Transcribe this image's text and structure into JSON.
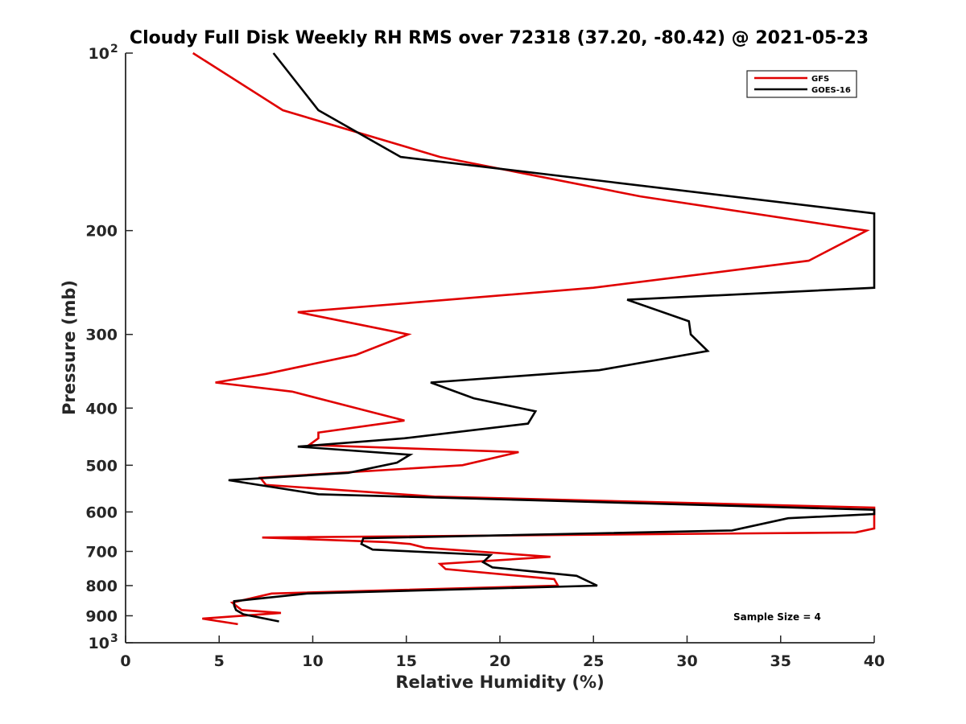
{
  "chart_data": {
    "type": "line",
    "title": "Cloudy Full Disk Weekly RH RMS over 72318 (37.20, -80.42) @ 2021-05-23",
    "xlabel": "Relative Humidity (%)",
    "ylabel": "Pressure (mb)",
    "xlim": [
      0,
      40
    ],
    "ylim": [
      1000,
      100
    ],
    "yscale": "log",
    "x_ticks": [
      "0",
      "5",
      "10",
      "15",
      "20",
      "25",
      "30",
      "35",
      "40"
    ],
    "y_ticks": [
      {
        "value": 100,
        "base": "10",
        "exp": "2"
      },
      {
        "value": 200,
        "label": "200"
      },
      {
        "value": 300,
        "label": "300"
      },
      {
        "value": 400,
        "label": "400"
      },
      {
        "value": 500,
        "label": "500"
      },
      {
        "value": 600,
        "label": "600"
      },
      {
        "value": 700,
        "label": "700"
      },
      {
        "value": 800,
        "label": "800"
      },
      {
        "value": 900,
        "label": "900"
      },
      {
        "value": 1000,
        "base": "10",
        "exp": "3"
      }
    ],
    "legend_position": "top-right",
    "annotation": "Sample Size = 4",
    "grid": false,
    "series": [
      {
        "name": "GFS",
        "color": "#e00000",
        "points": [
          [
            3.6,
            100
          ],
          [
            8.4,
            125
          ],
          [
            16.8,
            150
          ],
          [
            27.5,
            175
          ],
          [
            39.6,
            200
          ],
          [
            36.5,
            225
          ],
          [
            25.0,
            250
          ],
          [
            9.2,
            275
          ],
          [
            15.1,
            300
          ],
          [
            12.3,
            325
          ],
          [
            7.5,
            350
          ],
          [
            4.8,
            362
          ],
          [
            8.9,
            375
          ],
          [
            14.9,
            420
          ],
          [
            10.3,
            440
          ],
          [
            10.3,
            450
          ],
          [
            9.8,
            462
          ],
          [
            21.0,
            475
          ],
          [
            18.0,
            500
          ],
          [
            7.2,
            525
          ],
          [
            7.5,
            540
          ],
          [
            16.5,
            565
          ],
          [
            40,
            590
          ],
          [
            40,
            640
          ],
          [
            39.0,
            650
          ],
          [
            7.3,
            663
          ],
          [
            14.0,
            675
          ],
          [
            15.2,
            680
          ],
          [
            16.0,
            690
          ],
          [
            22.7,
            715
          ],
          [
            16.8,
            735
          ],
          [
            17.1,
            750
          ],
          [
            22.9,
            780
          ],
          [
            23.1,
            800
          ],
          [
            7.8,
            825
          ],
          [
            5.7,
            855
          ],
          [
            6.2,
            880
          ],
          [
            8.3,
            890
          ],
          [
            4.1,
            910
          ],
          [
            6.0,
            930
          ]
        ]
      },
      {
        "name": "GOES-16",
        "color": "#000000",
        "points": [
          [
            7.9,
            100
          ],
          [
            10.3,
            125
          ],
          [
            14.7,
            150
          ],
          [
            40,
            187
          ],
          [
            40,
            250
          ],
          [
            26.8,
            262
          ],
          [
            30.1,
            285
          ],
          [
            30.2,
            300
          ],
          [
            31.1,
            320
          ],
          [
            25.3,
            345
          ],
          [
            16.3,
            362
          ],
          [
            18.6,
            385
          ],
          [
            21.9,
            405
          ],
          [
            21.5,
            425
          ],
          [
            14.9,
            450
          ],
          [
            9.2,
            465
          ],
          [
            15.2,
            480
          ],
          [
            14.5,
            495
          ],
          [
            11.9,
            515
          ],
          [
            5.5,
            530
          ],
          [
            10.3,
            560
          ],
          [
            40,
            595
          ],
          [
            40,
            605
          ],
          [
            35.4,
            615
          ],
          [
            32.4,
            645
          ],
          [
            12.7,
            665
          ],
          [
            12.6,
            680
          ],
          [
            13.2,
            695
          ],
          [
            19.5,
            710
          ],
          [
            19.1,
            730
          ],
          [
            19.6,
            745
          ],
          [
            24.1,
            770
          ],
          [
            25.2,
            800
          ],
          [
            9.7,
            825
          ],
          [
            5.8,
            850
          ],
          [
            5.8,
            865
          ],
          [
            5.9,
            880
          ],
          [
            6.3,
            895
          ],
          [
            8.2,
            920
          ]
        ]
      }
    ]
  }
}
